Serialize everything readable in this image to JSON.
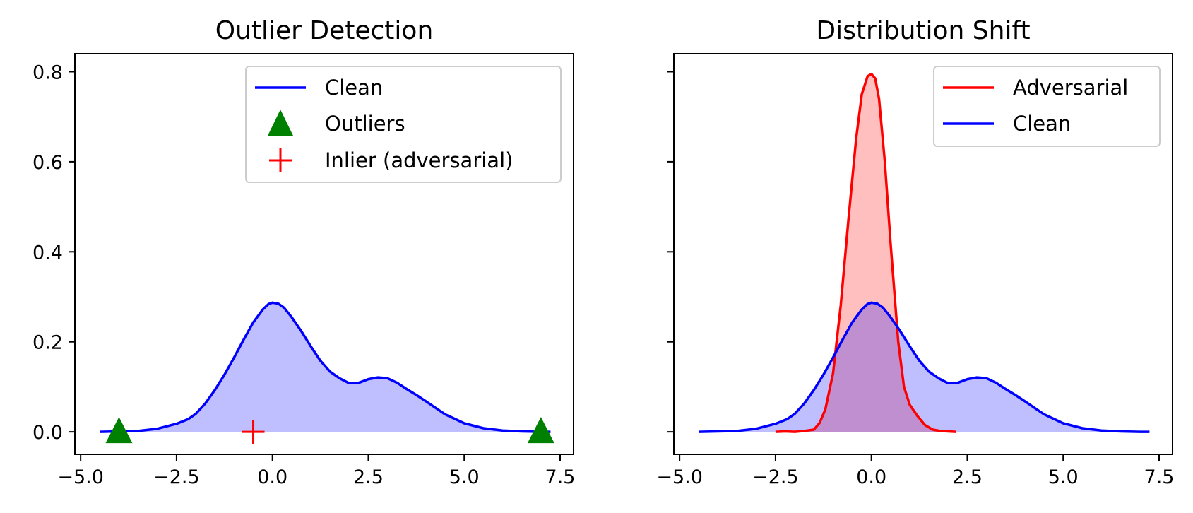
{
  "chart_data": [
    {
      "type": "line",
      "title": "Outlier Detection",
      "xlim": [
        -5.15,
        7.85
      ],
      "ylim": [
        -0.05,
        0.84
      ],
      "xticks": [
        -5.0,
        -2.5,
        0.0,
        2.5,
        5.0,
        7.5
      ],
      "xtick_labels": [
        "−5.0",
        "−2.5",
        "0.0",
        "2.5",
        "5.0",
        "7.5"
      ],
      "yticks": [
        0.0,
        0.2,
        0.4,
        0.6,
        0.8
      ],
      "ytick_labels": [
        "0.0",
        "0.2",
        "0.4",
        "0.6",
        "0.8"
      ],
      "legend_position": "upper-right",
      "legend": [
        "Clean",
        "Outliers",
        "Inlier (adversarial)"
      ],
      "series": [
        {
          "name": "Clean",
          "kind": "line-filled",
          "color": "#0000ff",
          "fill": "#bfbfff",
          "x": [
            -4.5,
            -4.0,
            -3.5,
            -3.0,
            -2.5,
            -2.2,
            -2.0,
            -1.75,
            -1.5,
            -1.25,
            -1.0,
            -0.75,
            -0.5,
            -0.25,
            -0.1,
            0.0,
            0.15,
            0.3,
            0.5,
            0.75,
            1.0,
            1.25,
            1.5,
            1.75,
            2.0,
            2.25,
            2.5,
            2.75,
            3.0,
            3.25,
            3.5,
            3.75,
            4.0,
            4.5,
            5.0,
            5.5,
            6.0,
            6.5,
            7.0,
            7.25
          ],
          "y": [
            0.0,
            0.001,
            0.002,
            0.007,
            0.018,
            0.028,
            0.04,
            0.063,
            0.093,
            0.127,
            0.165,
            0.205,
            0.243,
            0.272,
            0.284,
            0.287,
            0.285,
            0.276,
            0.255,
            0.224,
            0.19,
            0.158,
            0.134,
            0.119,
            0.108,
            0.109,
            0.117,
            0.121,
            0.119,
            0.109,
            0.095,
            0.082,
            0.068,
            0.039,
            0.019,
            0.008,
            0.003,
            0.001,
            0.0,
            0.0
          ]
        },
        {
          "name": "Outliers",
          "kind": "scatter-triangle",
          "color": "#008000",
          "x": [
            -4.0,
            7.0
          ],
          "y": [
            0.0,
            0.0
          ]
        },
        {
          "name": "Inlier (adversarial)",
          "kind": "scatter-plus",
          "color": "#ff0000",
          "x": [
            -0.5
          ],
          "y": [
            0.0
          ]
        }
      ]
    },
    {
      "type": "line",
      "title": "Distribution Shift",
      "xlim": [
        -5.15,
        7.85
      ],
      "ylim": [
        -0.05,
        0.84
      ],
      "xticks": [
        -5.0,
        -2.5,
        0.0,
        2.5,
        5.0,
        7.5
      ],
      "xtick_labels": [
        "−5.0",
        "−2.5",
        "0.0",
        "2.5",
        "5.0",
        "7.5"
      ],
      "yticks": [
        0.0,
        0.2,
        0.4,
        0.6,
        0.8
      ],
      "ytick_labels": [],
      "legend_position": "upper-right",
      "legend": [
        "Adversarial",
        "Clean"
      ],
      "series": [
        {
          "name": "Adversarial",
          "kind": "line-filled",
          "color": "#ff0000",
          "fill": "rgba(255,0,0,0.25)",
          "x": [
            -2.5,
            -2.25,
            -2.0,
            -1.75,
            -1.5,
            -1.35,
            -1.2,
            -1.0,
            -0.8,
            -0.6,
            -0.4,
            -0.25,
            -0.1,
            0.0,
            0.1,
            0.2,
            0.35,
            0.5,
            0.7,
            0.85,
            1.0,
            1.2,
            1.4,
            1.6,
            1.8,
            2.0,
            2.2
          ],
          "y": [
            0.0,
            0.001,
            0.0,
            0.002,
            0.005,
            0.02,
            0.05,
            0.13,
            0.28,
            0.47,
            0.65,
            0.75,
            0.79,
            0.795,
            0.785,
            0.74,
            0.6,
            0.42,
            0.2,
            0.1,
            0.06,
            0.035,
            0.015,
            0.005,
            0.002,
            0.001,
            0.0
          ]
        },
        {
          "name": "Clean",
          "kind": "line-filled",
          "color": "#0000ff",
          "fill": "rgba(0,0,255,0.25)",
          "x": [
            -4.5,
            -4.0,
            -3.5,
            -3.0,
            -2.5,
            -2.2,
            -2.0,
            -1.75,
            -1.5,
            -1.25,
            -1.0,
            -0.75,
            -0.5,
            -0.25,
            -0.1,
            0.0,
            0.15,
            0.3,
            0.5,
            0.75,
            1.0,
            1.25,
            1.5,
            1.75,
            2.0,
            2.25,
            2.5,
            2.75,
            3.0,
            3.25,
            3.5,
            3.75,
            4.0,
            4.5,
            5.0,
            5.5,
            6.0,
            6.5,
            7.0,
            7.25
          ],
          "y": [
            0.0,
            0.001,
            0.002,
            0.007,
            0.018,
            0.028,
            0.04,
            0.063,
            0.093,
            0.127,
            0.165,
            0.205,
            0.243,
            0.272,
            0.284,
            0.287,
            0.285,
            0.276,
            0.255,
            0.224,
            0.19,
            0.158,
            0.134,
            0.119,
            0.108,
            0.109,
            0.117,
            0.121,
            0.119,
            0.109,
            0.095,
            0.082,
            0.068,
            0.039,
            0.019,
            0.008,
            0.003,
            0.001,
            0.0,
            0.0
          ]
        }
      ]
    }
  ]
}
